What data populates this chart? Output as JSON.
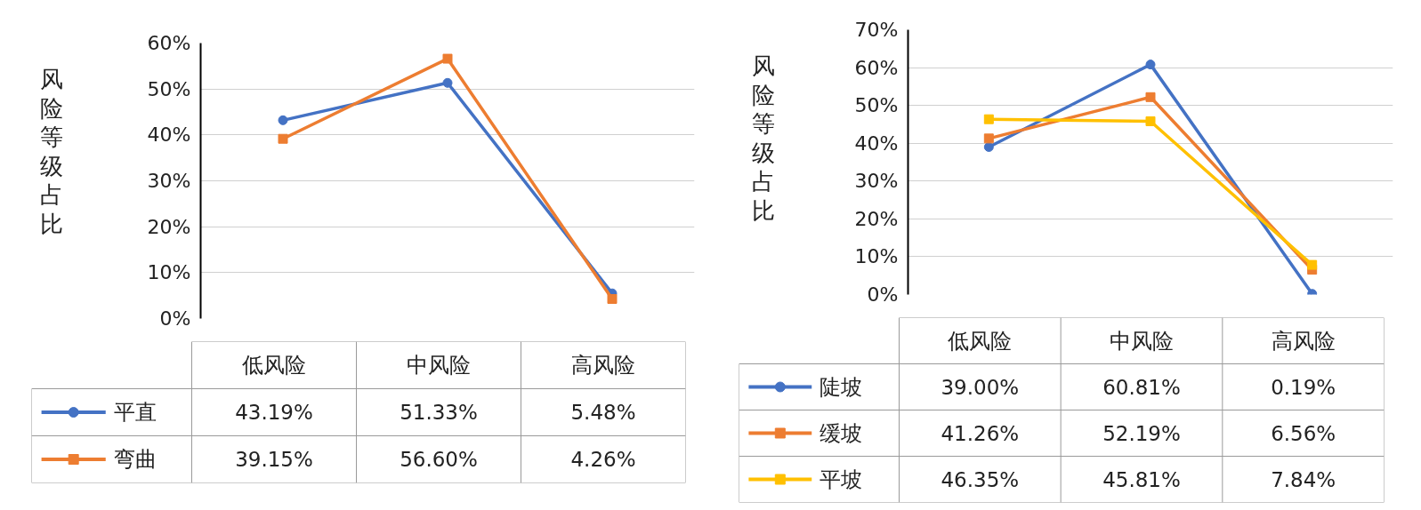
{
  "chart_data": [
    {
      "type": "line",
      "ylabel": "风险等级占比",
      "categories": [
        "低风险",
        "中风险",
        "高风险"
      ],
      "series": [
        {
          "name": "平直",
          "color": "#4472c4",
          "marker": "circle",
          "values": [
            43.19,
            51.33,
            5.48
          ],
          "value_labels": [
            "43.19%",
            "51.33%",
            "5.48%"
          ]
        },
        {
          "name": "弯曲",
          "color": "#ed7d31",
          "marker": "square",
          "values": [
            39.15,
            56.6,
            4.26
          ],
          "value_labels": [
            "39.15%",
            "56.60%",
            "4.26%"
          ]
        }
      ],
      "ylim": [
        0,
        60
      ],
      "yticks": [
        {
          "value": 0,
          "label": "0%"
        },
        {
          "value": 10,
          "label": "10%"
        },
        {
          "value": 20,
          "label": "20%"
        },
        {
          "value": 30,
          "label": "30%"
        },
        {
          "value": 40,
          "label": "40%"
        },
        {
          "value": 50,
          "label": "50%"
        },
        {
          "value": 60,
          "label": "60%"
        }
      ],
      "grid": "y",
      "legend": "bottom"
    },
    {
      "type": "line",
      "ylabel": "风险等级占比",
      "categories": [
        "低风险",
        "中风险",
        "高风险"
      ],
      "series": [
        {
          "name": "陡坡",
          "color": "#4472c4",
          "marker": "circle",
          "values": [
            39.0,
            60.81,
            0.19
          ],
          "value_labels": [
            "39.00%",
            "60.81%",
            "0.19%"
          ]
        },
        {
          "name": "缓坡",
          "color": "#ed7d31",
          "marker": "square",
          "values": [
            41.26,
            52.19,
            6.56
          ],
          "value_labels": [
            "41.26%",
            "52.19%",
            "6.56%"
          ]
        },
        {
          "name": "平坡",
          "color": "#ffc000",
          "marker": "square",
          "values": [
            46.35,
            45.81,
            7.84
          ],
          "value_labels": [
            "46.35%",
            "45.81%",
            "7.84%"
          ]
        }
      ],
      "ylim": [
        0,
        70
      ],
      "yticks": [
        {
          "value": 0,
          "label": "0%"
        },
        {
          "value": 10,
          "label": "10%"
        },
        {
          "value": 20,
          "label": "20%"
        },
        {
          "value": 30,
          "label": "30%"
        },
        {
          "value": 40,
          "label": "40%"
        },
        {
          "value": 50,
          "label": "50%"
        },
        {
          "value": 60,
          "label": "60%"
        },
        {
          "value": 70,
          "label": "70%"
        }
      ],
      "grid": "y",
      "legend": "bottom"
    }
  ]
}
